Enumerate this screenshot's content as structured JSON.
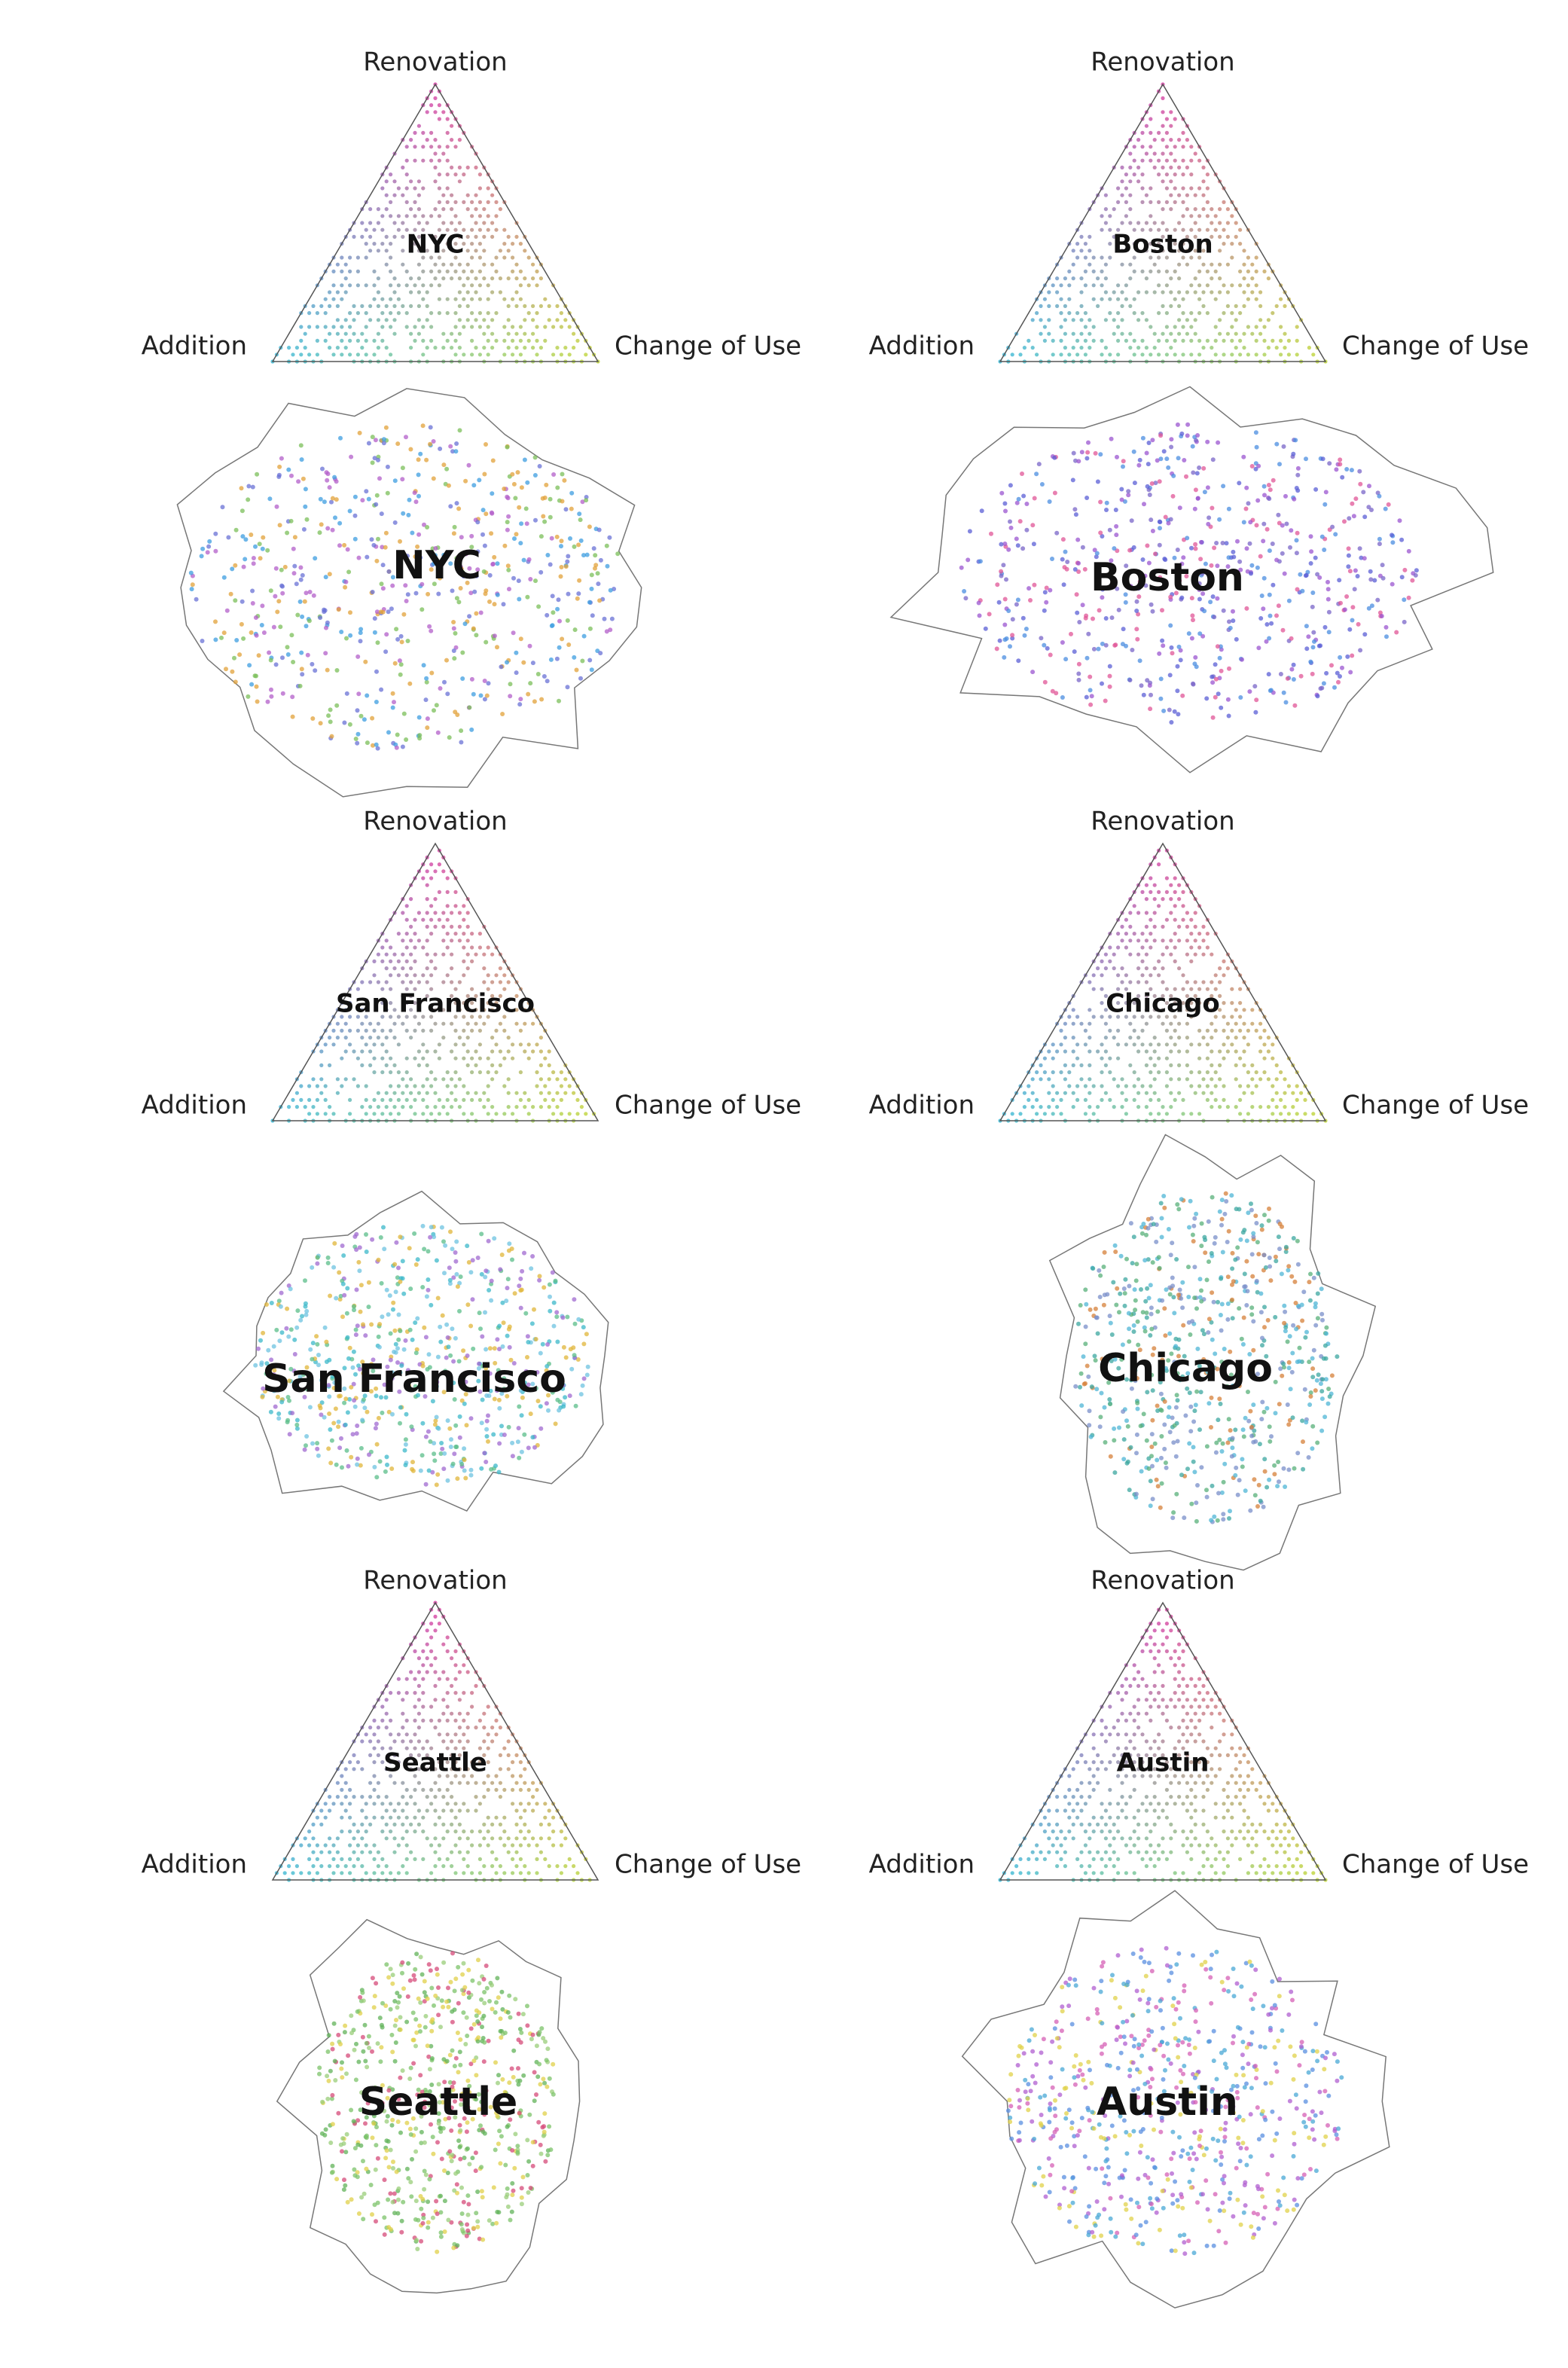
{
  "panels": [
    {
      "triangle": {
        "top": "Renovation",
        "left": "Addition",
        "right": "Change of Use",
        "center": "NYC"
      },
      "map_label": "NYC"
    },
    {
      "triangle": {
        "top": "Renovation",
        "left": "Addition",
        "right": "Change of Use",
        "center": "Boston"
      },
      "map_label": "Boston"
    },
    {
      "triangle": {
        "top": "Renovation",
        "left": "Addition",
        "right": "Change of Use",
        "center": "San Francisco"
      },
      "map_label": "San Francisco"
    },
    {
      "triangle": {
        "top": "Renovation",
        "left": "Addition",
        "right": "Change of Use",
        "center": "Chicago"
      },
      "map_label": "Chicago"
    },
    {
      "triangle": {
        "top": "Renovation",
        "left": "Addition",
        "right": "Change of Use",
        "center": "Seattle"
      },
      "map_label": "Seattle"
    },
    {
      "triangle": {
        "top": "Renovation",
        "left": "Addition",
        "right": "Change of Use",
        "center": "Austin"
      },
      "map_label": "Austin"
    }
  ]
}
